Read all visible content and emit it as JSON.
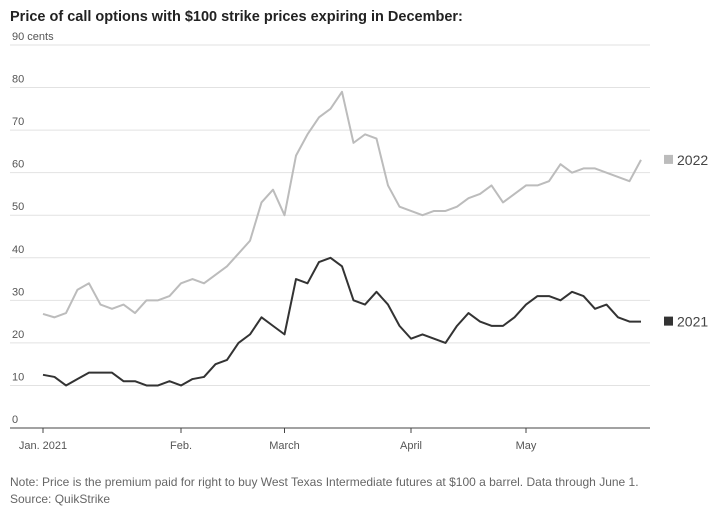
{
  "chart_data": {
    "type": "line",
    "title": "Price of call options with $100 strike prices expiring in December:",
    "note": "Note: Price is the premium paid for right to buy West Texas Intermediate futures at $100 a barrel. Data through June 1.",
    "source": "Source: QuikStrike",
    "categories": [
      "Jan. 2021",
      null,
      null,
      null,
      null,
      null,
      null,
      null,
      null,
      null,
      null,
      null,
      "Feb.",
      null,
      null,
      null,
      null,
      null,
      null,
      null,
      null,
      "March",
      null,
      null,
      null,
      null,
      null,
      null,
      null,
      null,
      null,
      null,
      "April",
      null,
      null,
      null,
      null,
      null,
      null,
      null,
      null,
      null,
      "May",
      null,
      null,
      null,
      null,
      null,
      null,
      null,
      null,
      null,
      null
    ],
    "series": [
      {
        "name": "2022",
        "color": "#bcbcbc",
        "values": [
          26.8,
          26,
          27,
          32.5,
          34,
          29,
          28,
          29,
          27,
          30,
          30,
          31,
          34,
          35,
          34,
          36,
          38,
          41,
          44,
          53,
          56,
          50,
          64,
          69,
          73,
          75,
          79,
          67,
          69,
          68,
          57,
          52,
          51,
          50,
          51,
          51,
          52,
          54,
          55,
          57,
          53,
          55,
          57,
          57,
          58,
          62,
          60,
          61,
          61,
          60,
          59,
          58,
          63
        ]
      },
      {
        "name": "2021",
        "color": "#333333",
        "values": [
          12.5,
          12,
          10,
          11.5,
          13,
          13,
          13,
          11,
          11,
          10,
          10,
          11,
          10,
          11.5,
          12,
          15,
          16,
          20,
          22,
          26,
          24,
          22,
          35,
          34,
          39,
          40,
          38,
          30,
          29,
          32,
          29,
          24,
          21,
          22,
          21,
          20,
          24,
          27,
          25,
          24,
          24,
          26,
          29,
          31,
          31,
          30,
          32,
          31,
          28,
          29,
          26,
          25,
          25
        ]
      }
    ],
    "ylim": [
      0,
      90
    ],
    "yticks": [
      0,
      10,
      20,
      30,
      40,
      50,
      60,
      70,
      80,
      {
        "value": 90,
        "label": "90 cents"
      }
    ],
    "grid": true
  }
}
